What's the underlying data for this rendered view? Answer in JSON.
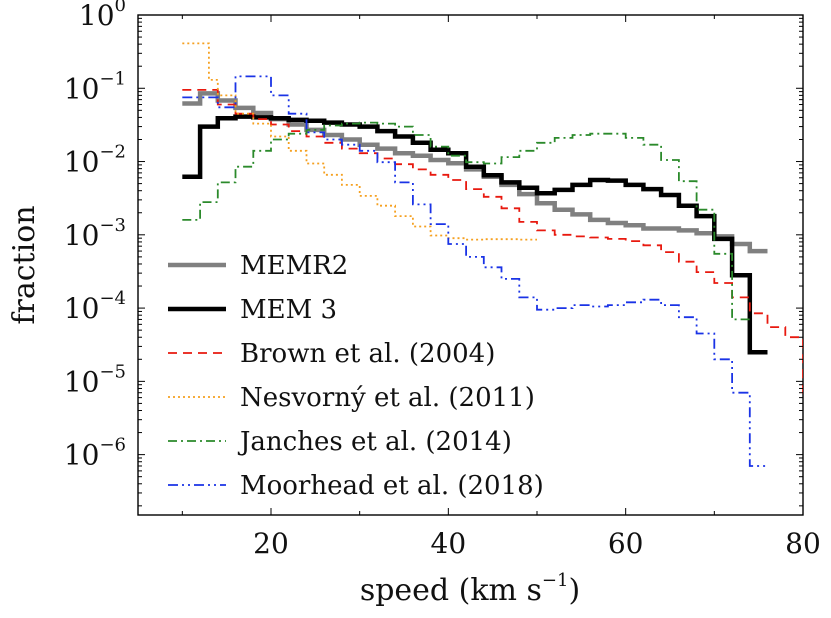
{
  "chart_data": {
    "type": "line",
    "step": true,
    "xlabel_base": "speed (km s",
    "xlabel_exp": "−1",
    "xlabel_close": ")",
    "ylabel": "fraction",
    "xlim": [
      5,
      80
    ],
    "ylim": [
      1.5e-07,
      1
    ],
    "yscale": "log",
    "xticks": [
      20,
      40,
      60,
      80
    ],
    "ytick_base": "10",
    "yticks": [
      {
        "value": 1,
        "exp": "0"
      },
      {
        "value": 0.1,
        "exp": "−1"
      },
      {
        "value": 0.01,
        "exp": "−2"
      },
      {
        "value": 0.001,
        "exp": "−3"
      },
      {
        "value": 0.0001,
        "exp": "−4"
      },
      {
        "value": 1e-05,
        "exp": "−5"
      },
      {
        "value": 1e-06,
        "exp": "−6"
      }
    ],
    "legend_position": "bottom-left",
    "series": [
      {
        "name": "MEMR2",
        "color": "#808080",
        "dash": "none",
        "width": 4.5,
        "x": [
          10,
          12,
          14,
          16,
          18,
          20,
          22,
          24,
          26,
          28,
          30,
          32,
          34,
          36,
          38,
          40,
          42,
          44,
          46,
          48,
          50,
          52,
          54,
          56,
          58,
          60,
          62,
          64,
          66,
          68,
          70,
          72,
          74
        ],
        "y": [
          0.062,
          0.085,
          0.068,
          0.054,
          0.046,
          0.038,
          0.032,
          0.027,
          0.023,
          0.02,
          0.017,
          0.015,
          0.013,
          0.012,
          0.0105,
          0.0095,
          0.0078,
          0.0062,
          0.0048,
          0.0036,
          0.0027,
          0.0022,
          0.0019,
          0.0016,
          0.00145,
          0.00135,
          0.00122,
          0.00122,
          0.00115,
          0.00105,
          0.00095,
          0.00075,
          0.0006
        ]
      },
      {
        "name": "MEM 3",
        "color": "#000000",
        "dash": "none",
        "width": 4.5,
        "x": [
          10,
          12,
          14,
          16,
          18,
          20,
          22,
          24,
          26,
          28,
          30,
          32,
          34,
          36,
          38,
          40,
          42,
          44,
          46,
          48,
          50,
          52,
          54,
          56,
          58,
          60,
          62,
          64,
          66,
          68,
          70,
          72,
          74
        ],
        "y": [
          0.0062,
          0.03,
          0.039,
          0.041,
          0.04,
          0.039,
          0.037,
          0.036,
          0.034,
          0.032,
          0.03,
          0.026,
          0.022,
          0.018,
          0.0145,
          0.013,
          0.0085,
          0.0065,
          0.0052,
          0.0044,
          0.0037,
          0.0041,
          0.0048,
          0.0056,
          0.0055,
          0.0048,
          0.0042,
          0.0035,
          0.0025,
          0.0018,
          0.00088,
          0.00028,
          2.5e-05
        ]
      },
      {
        "name": "Brown et al. (2004)",
        "color": "#e8190f",
        "dash": "9,6",
        "width": 1.8,
        "x": [
          10,
          12,
          14,
          16,
          18,
          20,
          22,
          24,
          26,
          28,
          30,
          32,
          34,
          36,
          38,
          40,
          42,
          44,
          46,
          48,
          50,
          52,
          54,
          56,
          58,
          60,
          62,
          64,
          66,
          68,
          70,
          72,
          74,
          76,
          78,
          80
        ],
        "y": [
          0.095,
          0.095,
          0.06,
          0.045,
          0.038,
          0.032,
          0.026,
          0.022,
          0.018,
          0.015,
          0.013,
          0.011,
          0.0092,
          0.0078,
          0.0066,
          0.0056,
          0.0042,
          0.0033,
          0.0023,
          0.0015,
          0.00115,
          0.001,
          0.00095,
          0.00092,
          0.00088,
          0.00082,
          0.00072,
          0.00058,
          0.00043,
          0.00031,
          0.00022,
          0.00014,
          8.5e-05,
          5.5e-05,
          4e-05,
          7e-06
        ]
      },
      {
        "name": "Nesvorný et al. (2011)",
        "color": "#f5a020",
        "dash": "2,3",
        "width": 1.8,
        "x": [
          10,
          11,
          12,
          13,
          14,
          16,
          18,
          20,
          22,
          24,
          26,
          28,
          30,
          32,
          34,
          36,
          38,
          40,
          42,
          44,
          46,
          48
        ],
        "y": [
          0.41,
          0.41,
          0.41,
          0.13,
          0.08,
          0.045,
          0.033,
          0.022,
          0.014,
          0.0094,
          0.0066,
          0.0048,
          0.0034,
          0.0025,
          0.0018,
          0.0013,
          0.00098,
          0.0009,
          0.00086,
          0.00087,
          0.00087,
          0.00086
        ]
      },
      {
        "name": "Janches et al. (2014)",
        "color": "#2b8a2b",
        "dash": "9,4,2,4",
        "width": 1.8,
        "x": [
          10,
          12,
          14,
          16,
          18,
          20,
          22,
          24,
          26,
          28,
          30,
          32,
          34,
          36,
          38,
          40,
          42,
          44,
          46,
          48,
          50,
          52,
          54,
          56,
          58,
          60,
          62,
          64,
          66,
          68,
          70,
          72
        ],
        "y": [
          0.0016,
          0.0028,
          0.0052,
          0.0085,
          0.014,
          0.02,
          0.024,
          0.027,
          0.031,
          0.033,
          0.034,
          0.033,
          0.03,
          0.023,
          0.016,
          0.012,
          0.0098,
          0.0094,
          0.0115,
          0.014,
          0.018,
          0.021,
          0.023,
          0.024,
          0.024,
          0.021,
          0.017,
          0.0105,
          0.0054,
          0.0022,
          0.00055,
          7e-05
        ]
      },
      {
        "name": "Moorhead et al. (2018)",
        "color": "#1a33e6",
        "dash": "10,4,2,4,2,4",
        "width": 1.8,
        "x": [
          10,
          12,
          14,
          15,
          16,
          18,
          20,
          22,
          24,
          26,
          28,
          30,
          32,
          34,
          36,
          38,
          40,
          42,
          44,
          46,
          48,
          50,
          52,
          54,
          56,
          58,
          60,
          62,
          64,
          66,
          68,
          70,
          72,
          74
        ],
        "y": [
          0.075,
          0.075,
          0.055,
          0.055,
          0.145,
          0.145,
          0.08,
          0.045,
          0.025,
          0.02,
          0.017,
          0.014,
          0.0098,
          0.0052,
          0.0026,
          0.0014,
          0.00075,
          0.0005,
          0.00036,
          0.00025,
          0.00014,
          9.5e-05,
          0.0001,
          0.00011,
          0.000105,
          0.00011,
          0.00012,
          0.00013,
          0.00011,
          7.5e-05,
          4.5e-05,
          2e-05,
          7e-06,
          7e-07
        ]
      }
    ]
  }
}
